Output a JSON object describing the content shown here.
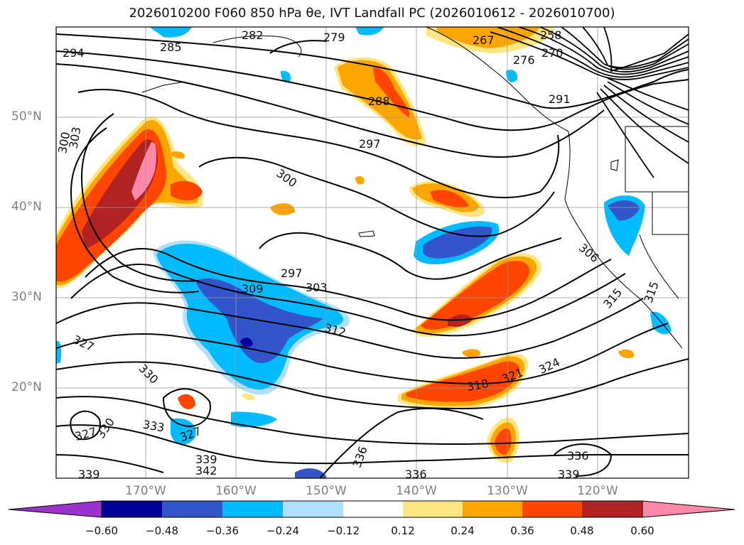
{
  "title": "2026010200 F060 850 hPa θe, IVT Landfall PC (2026010612 - 2026010700)",
  "map": {
    "lat_labels": [
      "50°N",
      "40°N",
      "30°N",
      "20°N"
    ],
    "lon_labels": [
      "170°W",
      "160°W",
      "150°W",
      "140°W",
      "130°W",
      "120°W"
    ],
    "contour_labels": [
      "282",
      "279",
      "294",
      "285",
      "267",
      "258",
      "270",
      "276",
      "288",
      "291",
      "297",
      "300",
      "303",
      "300",
      "297",
      "303",
      "309",
      "312",
      "306",
      "315",
      "315",
      "327",
      "330",
      "324",
      "321",
      "318",
      "330",
      "327",
      "333",
      "327",
      "336",
      "339",
      "342",
      "339",
      "336",
      "339",
      "336"
    ],
    "fill_colors": {
      "purple": "#9933cc",
      "navy": "#000099",
      "blue": "#3355cc",
      "deepskyblue": "#00bbff",
      "lightblue": "#b0e0ff",
      "white": "#ffffff",
      "yellow": "#ffe680",
      "orange": "#ffa500",
      "orangered": "#ff4500",
      "firebrick": "#b22222",
      "pink": "#ff88aa"
    }
  },
  "colorbar": {
    "tick_labels": [
      "−0.60",
      "−0.48",
      "−0.36",
      "−0.24",
      "−0.12",
      "0.12",
      "0.24",
      "0.36",
      "0.48",
      "0.60"
    ],
    "colors": [
      "#9933cc",
      "#000099",
      "#3355cc",
      "#00bbff",
      "#b0e0ff",
      "#ffffff",
      "#ffe680",
      "#ffa500",
      "#ff4500",
      "#b22222",
      "#ff88aa"
    ]
  }
}
